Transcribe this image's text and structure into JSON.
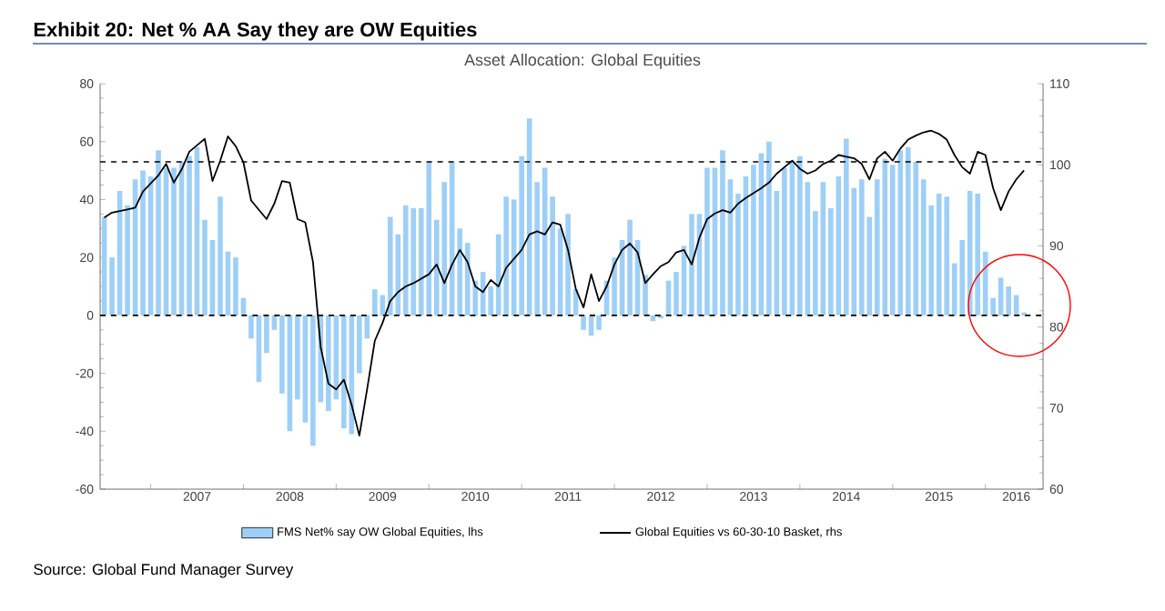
{
  "chart_data": {
    "type": "bar",
    "title": "Exhibit 20: Net % AA Say they are OW Equities",
    "subtitle": "Asset Allocation: Global Equities",
    "annotations": [
      "Source: Global Fund Manager Survey"
    ],
    "xlim": [
      "2006-06-15",
      "2016-08-15"
    ],
    "xticks": [
      {
        "value": "2007-01-01",
        "label": null
      },
      {
        "value": "2008-01-01",
        "label": null
      },
      {
        "value": "2009-01-01",
        "label": null
      },
      {
        "value": "2010-01-01",
        "label": null
      },
      {
        "value": "2011-01-01",
        "label": null
      },
      {
        "value": "2012-01-01",
        "label": null
      },
      {
        "value": "2013-01-01",
        "label": null
      },
      {
        "value": "2014-01-01",
        "label": null
      },
      {
        "value": "2015-01-01",
        "label": null
      },
      {
        "value": "2016-01-01",
        "label": null
      },
      {
        "value": "2007-07-01",
        "label": "2007"
      },
      {
        "value": "2008-07-01",
        "label": "2008"
      },
      {
        "value": "2009-07-01",
        "label": "2009"
      },
      {
        "value": "2010-07-01",
        "label": "2010"
      },
      {
        "value": "2011-07-01",
        "label": "2011"
      },
      {
        "value": "2012-07-01",
        "label": "2012"
      },
      {
        "value": "2013-07-01",
        "label": "2013"
      },
      {
        "value": "2014-07-01",
        "label": "2014"
      },
      {
        "value": "2015-07-01",
        "label": "2015"
      },
      {
        "value": "2016-05-01",
        "label": "2016"
      }
    ],
    "ylim": [
      -60,
      80
    ],
    "yticks": [
      -60,
      -40,
      -20,
      0,
      20,
      40,
      60,
      80
    ],
    "y2lim": [
      60,
      110
    ],
    "y2ticks": [
      60,
      70,
      80,
      90,
      100,
      110
    ],
    "legend": "bottom",
    "ref_lines": [
      {
        "axis": "y",
        "value": 0,
        "color": "#000000",
        "line_style": "dashed"
      },
      {
        "axis": "y",
        "value": 53,
        "color": "#000000",
        "line_style": "dashed"
      }
    ],
    "series": [
      {
        "name": "FMS Net% say OW Global Equities, lhs",
        "color": "#9ecff7",
        "x": [
          "2006-07",
          "2006-08",
          "2006-09",
          "2006-10",
          "2006-11",
          "2006-12",
          "2007-01",
          "2007-02",
          "2007-03",
          "2007-04",
          "2007-05",
          "2007-06",
          "2007-07",
          "2007-08",
          "2007-09",
          "2007-10",
          "2007-11",
          "2007-12",
          "2008-01",
          "2008-02",
          "2008-03",
          "2008-04",
          "2008-05",
          "2008-06",
          "2008-07",
          "2008-08",
          "2008-09",
          "2008-10",
          "2008-11",
          "2008-12",
          "2009-01",
          "2009-02",
          "2009-03",
          "2009-04",
          "2009-05",
          "2009-06",
          "2009-07",
          "2009-08",
          "2009-09",
          "2009-10",
          "2009-11",
          "2009-12",
          "2010-01",
          "2010-02",
          "2010-03",
          "2010-04",
          "2010-05",
          "2010-06",
          "2010-07",
          "2010-08",
          "2010-09",
          "2010-10",
          "2010-11",
          "2010-12",
          "2011-01",
          "2011-02",
          "2011-03",
          "2011-04",
          "2011-05",
          "2011-06",
          "2011-07",
          "2011-08",
          "2011-09",
          "2011-10",
          "2011-11",
          "2011-12",
          "2012-01",
          "2012-02",
          "2012-03",
          "2012-04",
          "2012-05",
          "2012-06",
          "2012-07",
          "2012-08",
          "2012-09",
          "2012-10",
          "2012-11",
          "2012-12",
          "2013-01",
          "2013-02",
          "2013-03",
          "2013-04",
          "2013-05",
          "2013-06",
          "2013-07",
          "2013-08",
          "2013-09",
          "2013-10",
          "2013-11",
          "2013-12",
          "2014-01",
          "2014-02",
          "2014-03",
          "2014-04",
          "2014-05",
          "2014-06",
          "2014-07",
          "2014-08",
          "2014-09",
          "2014-10",
          "2014-11",
          "2014-12",
          "2015-01",
          "2015-02",
          "2015-03",
          "2015-04",
          "2015-05",
          "2015-06",
          "2015-07",
          "2015-08",
          "2015-09",
          "2015-10",
          "2015-11",
          "2015-12",
          "2016-01",
          "2016-02",
          "2016-03",
          "2016-04",
          "2016-05",
          "2016-06"
        ],
        "values": [
          34,
          20,
          43,
          38,
          47,
          50,
          48,
          57,
          51,
          51,
          53,
          55,
          58,
          33,
          26,
          41,
          22,
          20,
          6,
          -8,
          -23,
          -13,
          -5,
          -27,
          -40,
          -29,
          -37,
          -45,
          -30,
          -33,
          -29,
          -39,
          -41,
          -20,
          -8,
          9,
          7,
          34,
          28,
          38,
          37,
          37,
          53,
          33,
          46,
          53,
          30,
          25,
          12,
          15,
          10,
          28,
          41,
          40,
          55,
          68,
          46,
          51,
          41,
          30,
          35,
          9,
          -5,
          -7,
          -5,
          12,
          20,
          26,
          33,
          26,
          14,
          -2,
          -1,
          12,
          15,
          24,
          35,
          35,
          51,
          51,
          57,
          47,
          42,
          48,
          52,
          56,
          60,
          43,
          51,
          53,
          55,
          46,
          36,
          46,
          37,
          48,
          61,
          44,
          47,
          34,
          47,
          54,
          52,
          57,
          58,
          53,
          47,
          38,
          42,
          41,
          18,
          26,
          43,
          42,
          22,
          6,
          13,
          10,
          7,
          1
        ]
      },
      {
        "name": "Global Equities vs 60-30-10 Basket, rhs",
        "type": "line",
        "axis": "y2",
        "color": "#000000",
        "x": [
          "2006-07",
          "2006-08",
          "2006-10",
          "2006-11",
          "2006-12",
          "2007-02",
          "2007-03",
          "2007-04",
          "2007-05",
          "2007-06",
          "2007-08",
          "2007-09",
          "2007-10",
          "2007-11",
          "2007-12",
          "2008-01",
          "2008-02",
          "2008-04",
          "2008-05",
          "2008-06",
          "2008-07",
          "2008-08",
          "2008-09",
          "2008-10",
          "2008-11",
          "2008-12",
          "2009-01",
          "2009-02",
          "2009-03",
          "2009-04",
          "2009-05",
          "2009-06",
          "2009-07",
          "2009-08",
          "2009-09",
          "2009-10",
          "2009-11",
          "2010-01",
          "2010-02",
          "2010-03",
          "2010-04",
          "2010-05",
          "2010-06",
          "2010-07",
          "2010-08",
          "2010-09",
          "2010-10",
          "2010-11",
          "2011-01",
          "2011-02",
          "2011-03",
          "2011-04",
          "2011-05",
          "2011-06",
          "2011-07",
          "2011-08",
          "2011-09",
          "2011-10",
          "2011-11",
          "2011-12",
          "2012-01",
          "2012-02",
          "2012-03",
          "2012-04",
          "2012-05",
          "2012-06",
          "2012-07",
          "2012-08",
          "2012-09",
          "2012-10",
          "2012-11",
          "2012-12",
          "2013-01",
          "2013-02",
          "2013-03",
          "2013-04",
          "2013-05",
          "2013-06",
          "2013-07",
          "2013-08",
          "2013-09",
          "2013-10",
          "2013-11",
          "2013-12",
          "2014-01",
          "2014-02",
          "2014-03",
          "2014-04",
          "2014-05",
          "2014-06",
          "2014-07",
          "2014-08",
          "2014-09",
          "2014-10",
          "2014-11",
          "2014-12",
          "2015-01",
          "2015-02",
          "2015-03",
          "2015-04",
          "2015-05",
          "2015-06",
          "2015-07",
          "2015-08",
          "2015-09",
          "2015-10",
          "2015-11",
          "2015-12",
          "2016-01",
          "2016-02",
          "2016-03",
          "2016-04",
          "2016-05",
          "2016-06"
        ],
        "values": [
          93.5,
          94.1,
          94.5,
          94.7,
          96.7,
          98.7,
          100.1,
          97.8,
          99.4,
          101.6,
          103.2,
          98,
          100.5,
          103.5,
          102.3,
          100.3,
          95.6,
          93.3,
          95.2,
          98,
          97.8,
          93.3,
          92.9,
          88,
          77.5,
          73,
          72.3,
          73.5,
          70.4,
          66.6,
          72.3,
          78.3,
          80.5,
          83.2,
          84.3,
          85,
          85.4,
          86.5,
          87.7,
          85.4,
          87.7,
          89.5,
          88,
          85,
          84.3,
          85.8,
          85,
          87.3,
          89.5,
          91.4,
          91.8,
          91.4,
          92.9,
          92.6,
          89.5,
          84.7,
          82.4,
          86.5,
          83.2,
          85,
          87.7,
          89.5,
          90.3,
          89.2,
          85.4,
          86.5,
          87.5,
          88,
          89.2,
          89.5,
          87.7,
          91,
          93.3,
          94,
          94.4,
          94.1,
          95.2,
          95.9,
          96.5,
          97.1,
          97.8,
          98.9,
          99.7,
          100.5,
          99.5,
          98.9,
          99.3,
          100.1,
          100.5,
          101.2,
          101,
          100.8,
          100.1,
          98.2,
          100.8,
          101.6,
          100.5,
          102,
          103.1,
          103.6,
          104,
          104.2,
          103.8,
          103.1,
          101.2,
          99.7,
          98.9,
          101.6,
          101.2,
          97.1,
          94.4,
          96.7,
          98.2,
          99.3
        ]
      }
    ]
  }
}
